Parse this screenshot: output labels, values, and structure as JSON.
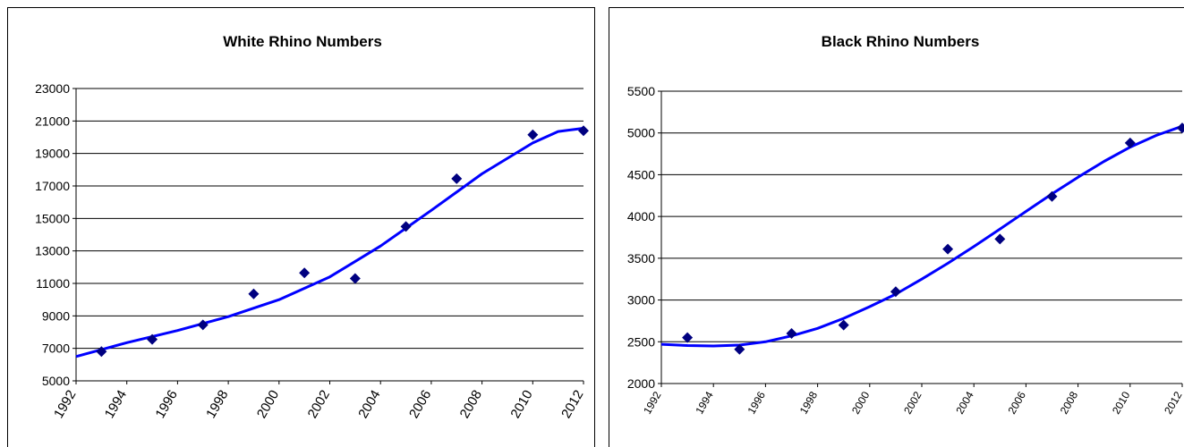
{
  "chart_data": [
    {
      "type": "scatter",
      "title": "White Rhino Numbers",
      "xlabel": "",
      "ylabel": "",
      "xlim": [
        1992,
        2012
      ],
      "ylim": [
        5000,
        23000
      ],
      "x_ticks": [
        "1992",
        "1994",
        "1996",
        "1998",
        "2000",
        "2002",
        "2004",
        "2006",
        "2008",
        "2010",
        "2012"
      ],
      "y_ticks": [
        "5000",
        "7000",
        "9000",
        "11000",
        "13000",
        "15000",
        "17000",
        "19000",
        "21000",
        "23000"
      ],
      "grid": "horizontal",
      "legend": "none",
      "points": [
        {
          "x": 1993,
          "y": 6800
        },
        {
          "x": 1995,
          "y": 7550
        },
        {
          "x": 1997,
          "y": 8450
        },
        {
          "x": 1999,
          "y": 10350
        },
        {
          "x": 2001,
          "y": 11650
        },
        {
          "x": 2003,
          "y": 11300
        },
        {
          "x": 2005,
          "y": 14500
        },
        {
          "x": 2007,
          "y": 17450
        },
        {
          "x": 2010,
          "y": 20150
        },
        {
          "x": 2012,
          "y": 20400
        }
      ],
      "trendline": [
        {
          "x": 1992,
          "y": 6500
        },
        {
          "x": 1994,
          "y": 7350
        },
        {
          "x": 1996,
          "y": 8100
        },
        {
          "x": 1998,
          "y": 8950
        },
        {
          "x": 2000,
          "y": 10000
        },
        {
          "x": 2002,
          "y": 11400
        },
        {
          "x": 2004,
          "y": 13300
        },
        {
          "x": 2006,
          "y": 15500
        },
        {
          "x": 2008,
          "y": 17750
        },
        {
          "x": 2010,
          "y": 19650
        },
        {
          "x": 2011,
          "y": 20350
        },
        {
          "x": 2012,
          "y": 20550
        }
      ],
      "marker_color": "#000080",
      "line_color": "#0000ff"
    },
    {
      "type": "scatter",
      "title": "Black Rhino Numbers",
      "xlabel": "",
      "ylabel": "",
      "xlim": [
        1992,
        2012
      ],
      "ylim": [
        2000,
        5500
      ],
      "x_ticks": [
        "1992",
        "1994",
        "1996",
        "1998",
        "2000",
        "2002",
        "2004",
        "2006",
        "2008",
        "2010",
        "2012"
      ],
      "y_ticks": [
        "2000",
        "2500",
        "3000",
        "3500",
        "4000",
        "4500",
        "5000",
        "5500"
      ],
      "grid": "horizontal",
      "legend": "none",
      "points": [
        {
          "x": 1993,
          "y": 2550
        },
        {
          "x": 1995,
          "y": 2410
        },
        {
          "x": 1997,
          "y": 2600
        },
        {
          "x": 1999,
          "y": 2700
        },
        {
          "x": 2001,
          "y": 3100
        },
        {
          "x": 2003,
          "y": 3610
        },
        {
          "x": 2005,
          "y": 3730
        },
        {
          "x": 2007,
          "y": 4240
        },
        {
          "x": 2010,
          "y": 4880
        },
        {
          "x": 2012,
          "y": 5060
        }
      ],
      "trendline": [
        {
          "x": 1992,
          "y": 2470
        },
        {
          "x": 1993,
          "y": 2455
        },
        {
          "x": 1994,
          "y": 2450
        },
        {
          "x": 1995,
          "y": 2460
        },
        {
          "x": 1996,
          "y": 2500
        },
        {
          "x": 1997,
          "y": 2570
        },
        {
          "x": 1998,
          "y": 2660
        },
        {
          "x": 1999,
          "y": 2780
        },
        {
          "x": 2000,
          "y": 2920
        },
        {
          "x": 2001,
          "y": 3070
        },
        {
          "x": 2002,
          "y": 3250
        },
        {
          "x": 2003,
          "y": 3440
        },
        {
          "x": 2004,
          "y": 3640
        },
        {
          "x": 2005,
          "y": 3850
        },
        {
          "x": 2006,
          "y": 4060
        },
        {
          "x": 2007,
          "y": 4270
        },
        {
          "x": 2008,
          "y": 4470
        },
        {
          "x": 2009,
          "y": 4660
        },
        {
          "x": 2010,
          "y": 4830
        },
        {
          "x": 2011,
          "y": 4970
        },
        {
          "x": 2012,
          "y": 5080
        }
      ],
      "marker_color": "#000080",
      "line_color": "#0000ff"
    }
  ]
}
